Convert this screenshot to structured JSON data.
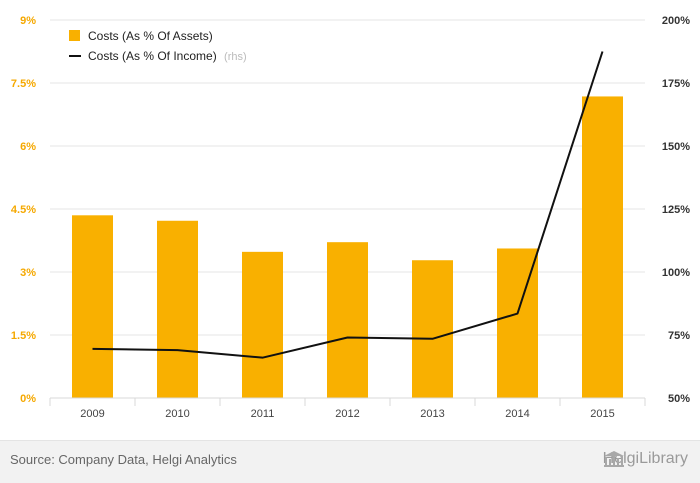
{
  "chart_data": {
    "type": "bar",
    "categories": [
      "2009",
      "2010",
      "2011",
      "2012",
      "2013",
      "2014",
      "2015"
    ],
    "series": [
      {
        "name": "Costs (As % Of Assets)",
        "type": "bar",
        "axis": "left",
        "color": "#f9b000",
        "values": [
          4.35,
          4.22,
          3.48,
          3.71,
          3.28,
          3.56,
          7.18
        ]
      },
      {
        "name": "Costs (As % Of Income)",
        "type": "line",
        "axis": "right",
        "color": "#111111",
        "values": [
          69.5,
          69.0,
          66.0,
          74.0,
          73.5,
          83.5,
          187.5
        ]
      }
    ],
    "rhs_note": "(rhs)",
    "y_left": {
      "min": 0,
      "max": 9,
      "ticks": [
        "0%",
        "1.5%",
        "3%",
        "4.5%",
        "6%",
        "7.5%",
        "9%"
      ]
    },
    "y_right": {
      "min": 50,
      "max": 200,
      "ticks": [
        "50%",
        "75%",
        "100%",
        "125%",
        "150%",
        "175%",
        "200%"
      ]
    },
    "grid": true,
    "legend_position": "top-left"
  },
  "footer": {
    "source": "Source: Company Data, Helgi Analytics",
    "brand": "HelgiLibrary"
  }
}
